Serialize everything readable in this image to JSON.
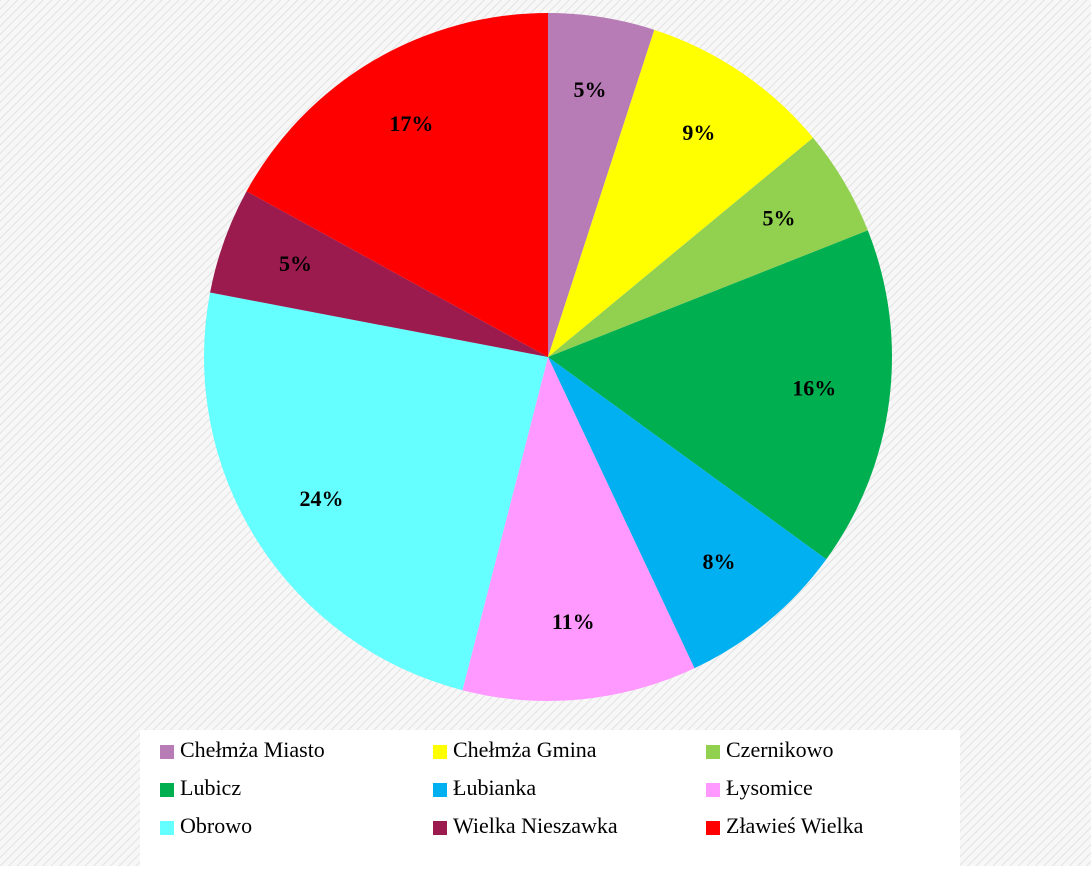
{
  "chart_data": {
    "type": "pie",
    "categories": [
      "Chełmża Miasto",
      "Chełmża Gmina",
      "Czernikowo",
      "Lubicz",
      "Łubianka",
      "Łysomice",
      "Obrowo",
      "Wielka Nieszawka",
      "Zławieś Wielka"
    ],
    "values": [
      5,
      9,
      5,
      16,
      8,
      11,
      24,
      5,
      17
    ],
    "value_labels": [
      "5%",
      "9%",
      "5%",
      "16%",
      "8%",
      "11%",
      "24%",
      "5%",
      "17%"
    ],
    "colors": [
      "#b77bb5",
      "#ffff00",
      "#92d050",
      "#00b050",
      "#00b0f0",
      "#ff99ff",
      "#66ffff",
      "#9b1b4f",
      "#ff0000"
    ],
    "legend": "bottom"
  }
}
